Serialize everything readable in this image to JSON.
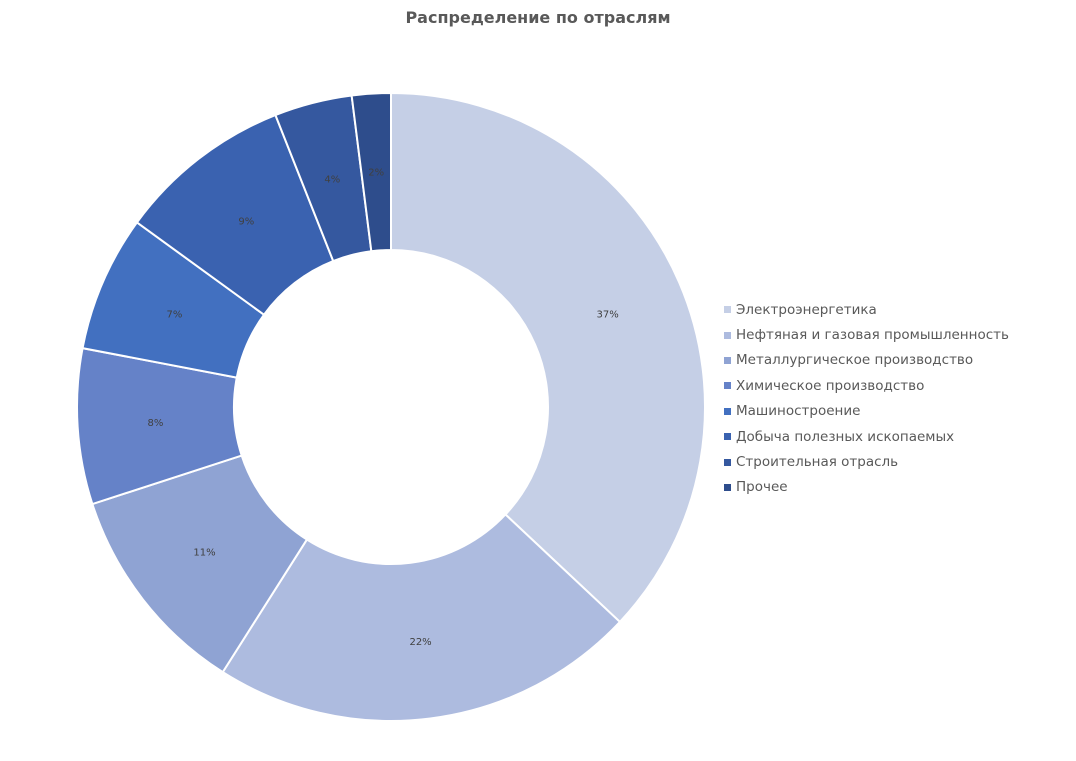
{
  "chart_data": {
    "type": "pie",
    "title": "Распределение по отраслям",
    "categories": [
      "Электроэнергетика",
      "Нефтяная и газовая промышленность",
      "Металлургическое производство",
      "Химическое производство",
      "Машиностроение",
      "Добыча полезных ископаемых",
      "Строительная отрасль",
      "Прочее"
    ],
    "values": [
      37,
      22,
      11,
      8,
      7,
      9,
      4,
      2
    ],
    "value_labels": [
      "37%",
      "22%",
      "11%",
      "8%",
      "7%",
      "9%",
      "4%",
      "2%"
    ],
    "colors": [
      "#c5cfe6",
      "#adbbdf",
      "#8fa3d3",
      "#6582c8",
      "#4270c0",
      "#3a62b0",
      "#35589f",
      "#2e4d8c"
    ],
    "donut": true,
    "legend_position": "right"
  }
}
